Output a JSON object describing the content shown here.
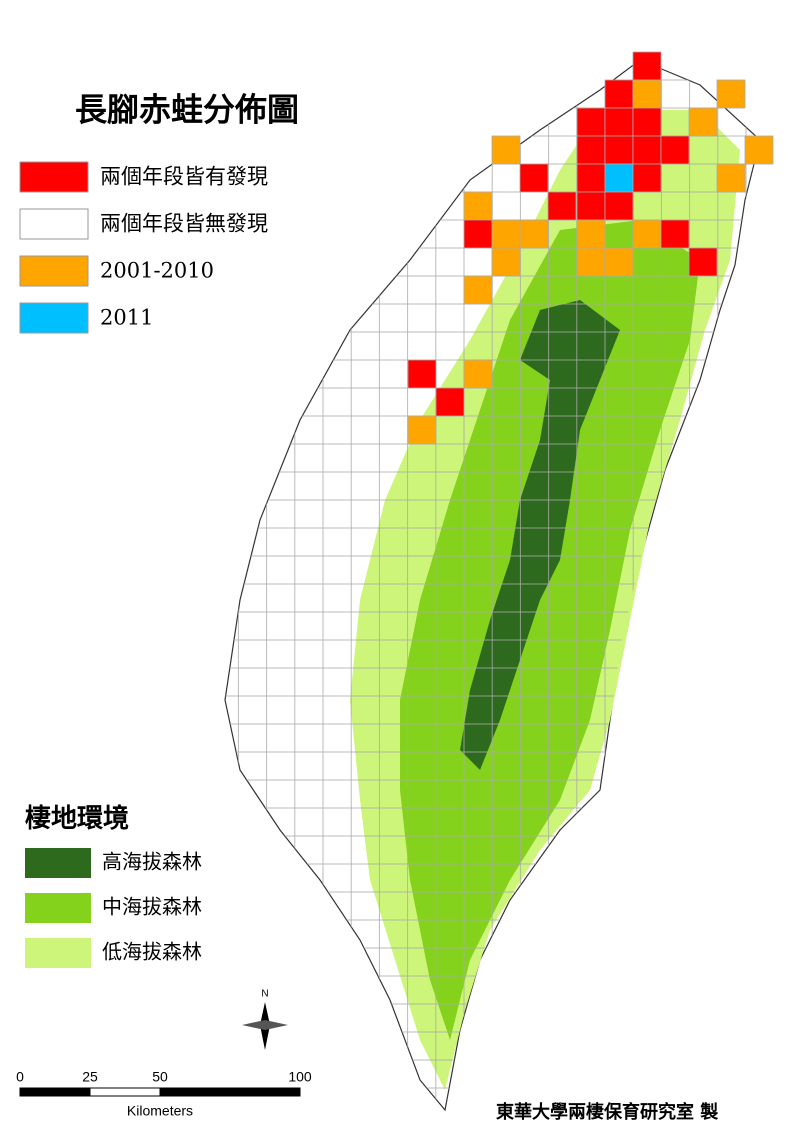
{
  "title": "長腳赤蛙分佈圖",
  "legend": {
    "items": [
      {
        "label": "兩個年段皆有發現",
        "color": "#ff0000"
      },
      {
        "label": "兩個年段皆無發現",
        "color": "#ffffff"
      },
      {
        "label": "2001-2010",
        "color": "#ffa500"
      },
      {
        "label": "2011",
        "color": "#00bfff"
      }
    ]
  },
  "habitat": {
    "title": "棲地環境",
    "items": [
      {
        "label": "高海拔森林",
        "color": "#2d6a1e"
      },
      {
        "label": "中海拔森林",
        "color": "#84d21c"
      },
      {
        "label": "低海拔森林",
        "color": "#cdf57a"
      }
    ]
  },
  "scale_bar": {
    "ticks": [
      0,
      25,
      50,
      100
    ],
    "unit": "Kilometers"
  },
  "north": "N",
  "credit": "東華大學兩棲保育研究室 製"
}
